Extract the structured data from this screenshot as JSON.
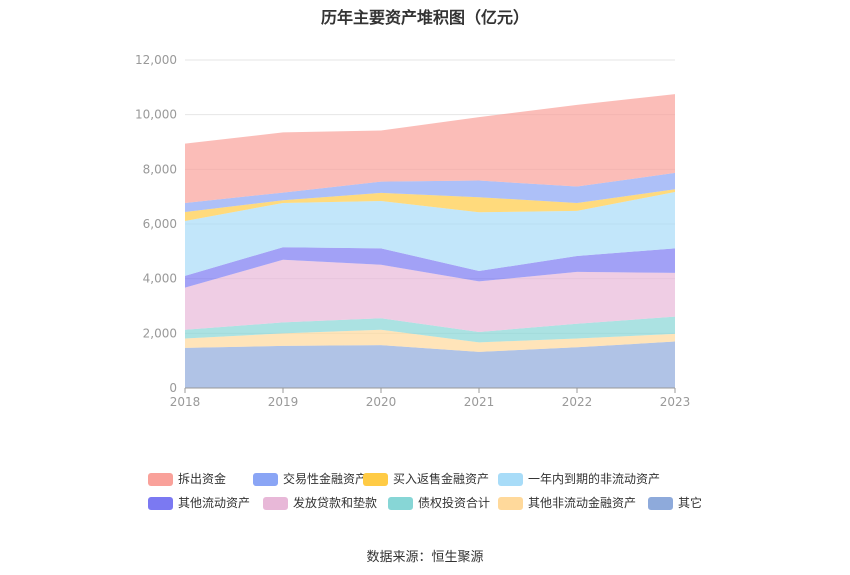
{
  "title": "历年主要资产堆积图（亿元）",
  "source": "数据来源：恒生聚源",
  "chart_data": {
    "type": "area",
    "stacked": true,
    "title": "历年主要资产堆积图（亿元）",
    "xlabel": "",
    "ylabel": "",
    "categories": [
      "2018",
      "2019",
      "2020",
      "2021",
      "2022",
      "2023"
    ],
    "ylim": [
      0,
      12000
    ],
    "yticks": [
      0,
      2000,
      4000,
      6000,
      8000,
      10000,
      12000
    ],
    "ytick_labels": [
      "0",
      "2,000",
      "4,000",
      "6,000",
      "8,000",
      "10,000",
      "12,000"
    ],
    "grid": true,
    "legend_position": "bottom",
    "series": [
      {
        "name": "其它",
        "color": "#8eaadb",
        "values": [
          1470,
          1540,
          1570,
          1320,
          1490,
          1700
        ]
      },
      {
        "name": "其他非流动金融资产",
        "color": "#ffd99b",
        "values": [
          340,
          460,
          560,
          350,
          320,
          280
        ]
      },
      {
        "name": "债权投资合计",
        "color": "#87d6d6",
        "values": [
          320,
          400,
          420,
          380,
          540,
          630
        ]
      },
      {
        "name": "发放贷款和垫款",
        "color": "#e8b8d8",
        "values": [
          1540,
          2290,
          1960,
          1850,
          1900,
          1600
        ]
      },
      {
        "name": "其他流动资产",
        "color": "#7b79f2",
        "values": [
          430,
          460,
          600,
          380,
          580,
          900
        ]
      },
      {
        "name": "一年内到期的非流动资产",
        "color": "#a8dcf8",
        "values": [
          2010,
          1620,
          1730,
          2150,
          1650,
          2060
        ]
      },
      {
        "name": "买入返售金融资产",
        "color": "#ffcb45",
        "values": [
          330,
          100,
          300,
          550,
          290,
          100
        ]
      },
      {
        "name": "交易性金融资产",
        "color": "#8aa5f5",
        "values": [
          330,
          280,
          410,
          610,
          600,
          600
        ]
      },
      {
        "name": "拆出资金",
        "color": "#f9a19a",
        "values": [
          2170,
          2200,
          1870,
          2320,
          2990,
          2880
        ]
      }
    ]
  },
  "legend_order": [
    "拆出资金",
    "交易性金融资产",
    "买入返售金融资产",
    "一年内到期的非流动资产",
    "其他流动资产",
    "发放贷款和垫款",
    "债权投资合计",
    "其他非流动金融资产",
    "其它"
  ]
}
